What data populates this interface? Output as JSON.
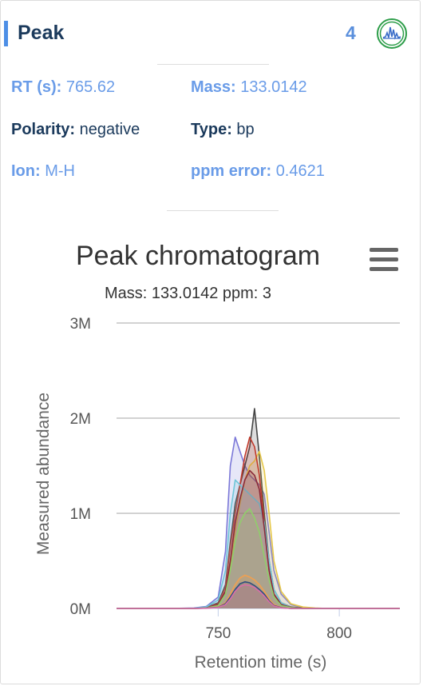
{
  "header": {
    "title": "Peak",
    "count": "4"
  },
  "details": {
    "rt_label": "RT (s)",
    "rt_value": "765.62",
    "mass_label": "Mass",
    "mass_value": "133.0142",
    "polarity_label": "Polarity",
    "polarity_value": "negative",
    "type_label": "Type",
    "type_value": "bp",
    "ion_label": "Ion",
    "ion_value": "M-H",
    "ppm_label": "ppm error",
    "ppm_value": "0.4621"
  },
  "colors": {
    "accent": "#4d8fe6",
    "heading": "#1b3a5c",
    "link": "#6a9ce8",
    "badge": "#2e9e4a"
  },
  "icons": {
    "badge": "chromatogram-badge-icon",
    "menu": "hamburger-menu-icon"
  },
  "chart_data": {
    "type": "area",
    "title": "Peak chromatogram",
    "subtitle": "Mass: 133.0142 ppm: 3",
    "xlabel": "Retention time (s)",
    "ylabel": "Measured abundance",
    "xlim": [
      708,
      825
    ],
    "ylim": [
      0,
      3000000
    ],
    "xticks": [
      750,
      800
    ],
    "xtick_labels": [
      "750",
      "800"
    ],
    "yticks": [
      0,
      1000000,
      2000000,
      3000000
    ],
    "ytick_labels": [
      "0M",
      "1M",
      "2M",
      "3M"
    ],
    "grid": true,
    "x": [
      708,
      720,
      730,
      740,
      745,
      750,
      753,
      755,
      757,
      759,
      761,
      763,
      765,
      767,
      769,
      771,
      773,
      776,
      780,
      785,
      790,
      795,
      800,
      810,
      825
    ],
    "series": [
      {
        "color": "#7b78d8",
        "values": [
          0,
          0,
          0,
          5000,
          20000,
          120000,
          600000,
          1500000,
          1800000,
          1650000,
          1500000,
          1400000,
          1350000,
          1300000,
          1200000,
          800000,
          400000,
          150000,
          40000,
          10000,
          0,
          0,
          0,
          0,
          0
        ]
      },
      {
        "color": "#444444",
        "values": [
          0,
          0,
          0,
          0,
          10000,
          60000,
          250000,
          700000,
          1100000,
          1300000,
          1500000,
          1700000,
          2100000,
          1600000,
          1000000,
          500000,
          200000,
          60000,
          15000,
          5000,
          0,
          0,
          0,
          0,
          0
        ]
      },
      {
        "color": "#e6c84a",
        "values": [
          0,
          0,
          0,
          0,
          5000,
          40000,
          150000,
          450000,
          800000,
          1100000,
          1350000,
          1500000,
          1550000,
          1650000,
          1450000,
          1000000,
          500000,
          180000,
          50000,
          15000,
          5000,
          0,
          0,
          0,
          0
        ]
      },
      {
        "color": "#c0392b",
        "values": [
          0,
          0,
          0,
          0,
          8000,
          50000,
          220000,
          650000,
          1000000,
          1300000,
          1600000,
          1800000,
          1700000,
          1400000,
          900000,
          400000,
          150000,
          40000,
          10000,
          0,
          0,
          0,
          0,
          0,
          0
        ]
      },
      {
        "color": "#6ec6d8",
        "values": [
          0,
          0,
          0,
          2000,
          15000,
          90000,
          400000,
          1000000,
          1350000,
          1300000,
          1250000,
          1200000,
          1150000,
          1100000,
          900000,
          500000,
          200000,
          60000,
          10000,
          0,
          0,
          0,
          0,
          0,
          0
        ]
      },
      {
        "color": "#8b2a3a",
        "values": [
          0,
          0,
          0,
          0,
          5000,
          40000,
          180000,
          500000,
          900000,
          1150000,
          1350000,
          1450000,
          1400000,
          1250000,
          850000,
          400000,
          150000,
          40000,
          10000,
          0,
          0,
          0,
          0,
          0,
          0
        ]
      },
      {
        "color": "#8fcf6a",
        "values": [
          0,
          0,
          0,
          0,
          5000,
          30000,
          150000,
          400000,
          700000,
          900000,
          1000000,
          1050000,
          950000,
          800000,
          550000,
          300000,
          120000,
          30000,
          8000,
          0,
          0,
          0,
          0,
          0,
          0
        ]
      },
      {
        "color": "#f0a050",
        "values": [
          0,
          0,
          0,
          0,
          3000,
          15000,
          60000,
          150000,
          250000,
          320000,
          350000,
          330000,
          300000,
          250000,
          180000,
          100000,
          40000,
          10000,
          0,
          0,
          0,
          0,
          0,
          0,
          0
        ]
      },
      {
        "color": "#2f4f7f",
        "values": [
          0,
          0,
          0,
          0,
          3000,
          12000,
          50000,
          120000,
          200000,
          260000,
          280000,
          270000,
          240000,
          200000,
          150000,
          80000,
          30000,
          8000,
          0,
          0,
          0,
          0,
          0,
          0,
          0
        ]
      },
      {
        "color": "#d96fa8",
        "values": [
          0,
          0,
          0,
          0,
          2000,
          10000,
          40000,
          100000,
          180000,
          230000,
          250000,
          240000,
          220000,
          180000,
          130000,
          70000,
          25000,
          6000,
          0,
          0,
          0,
          0,
          0,
          0,
          0
        ]
      }
    ]
  }
}
